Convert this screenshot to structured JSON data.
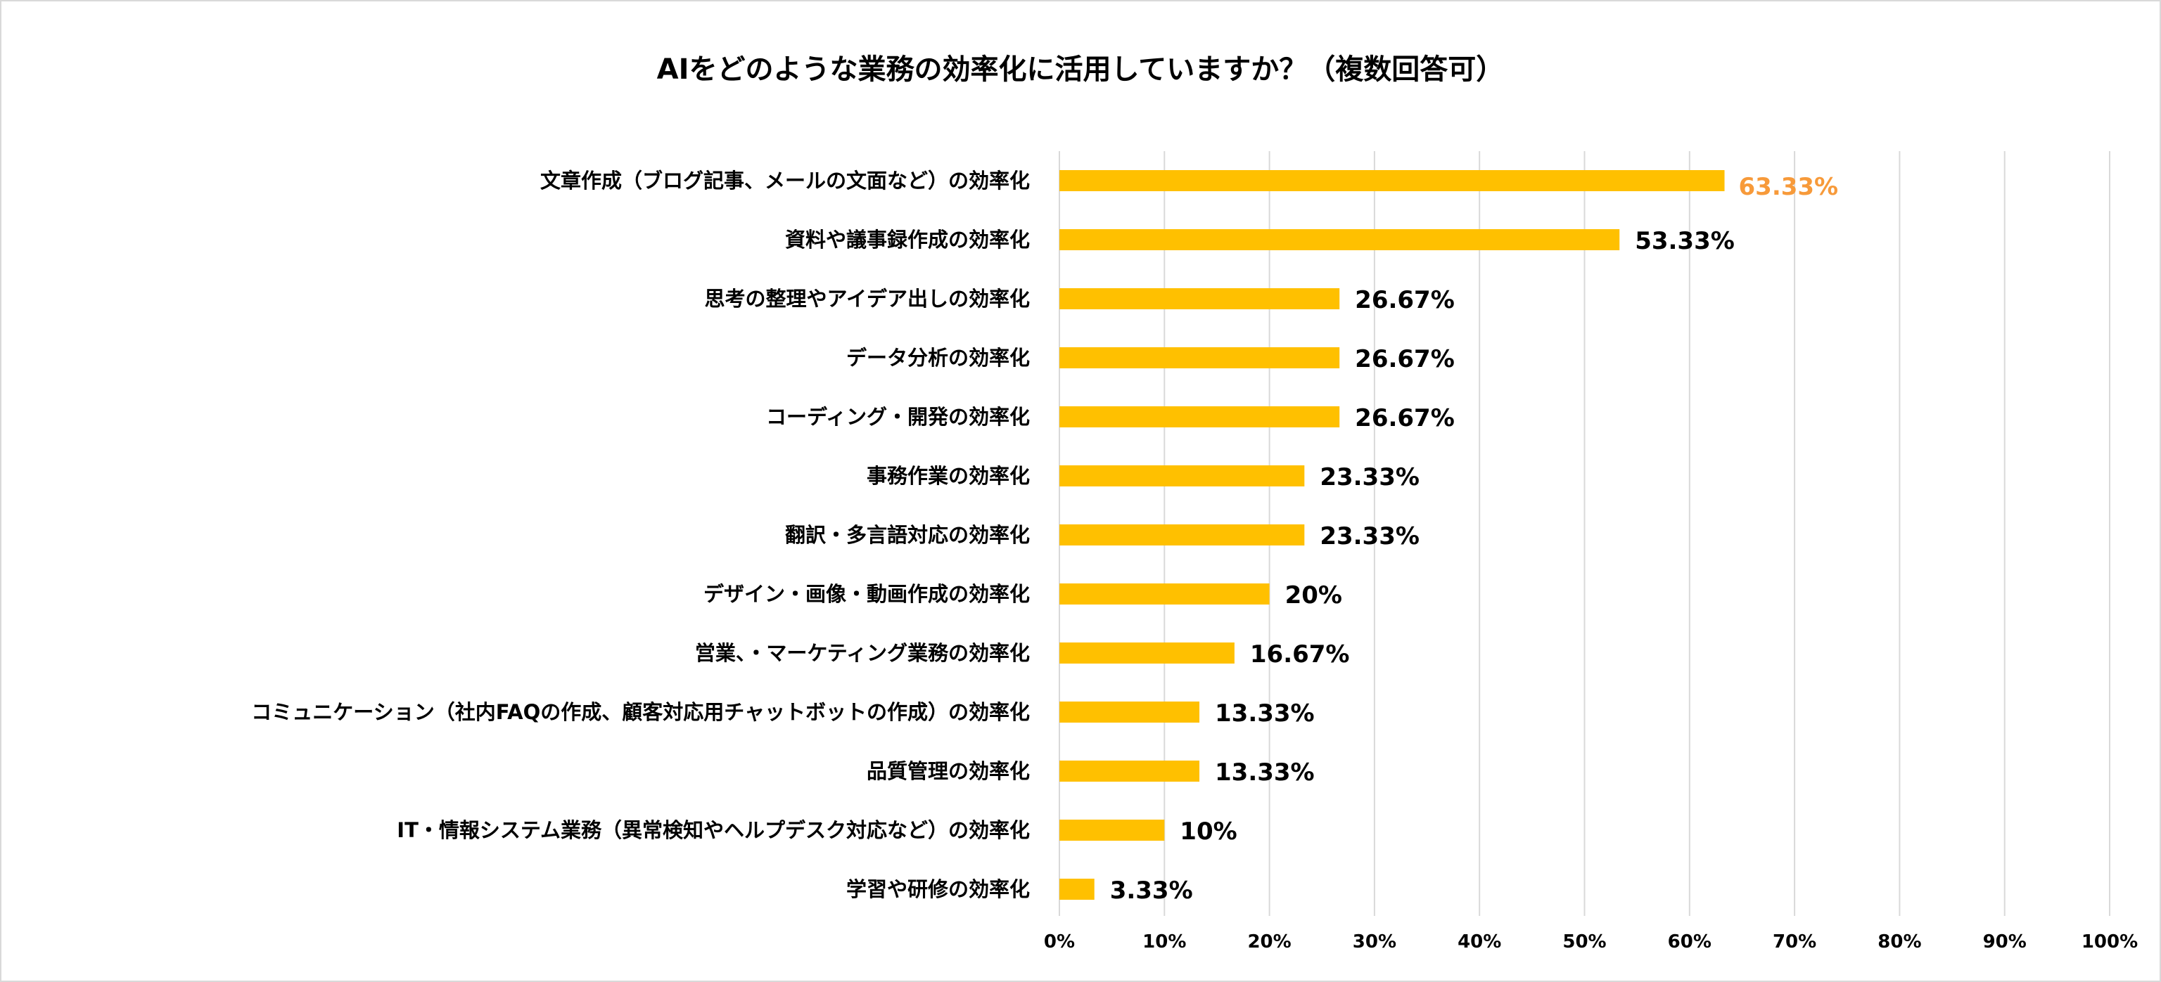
{
  "chart_data": {
    "type": "bar",
    "orientation": "horizontal",
    "title": "AIをどのような業務の効率化に活用していますか？（複数回答可）",
    "categories": [
      "文章作成（ブログ記事、メールの文面など）の効率化",
      "資料や議事録作成の効率化",
      "思考の整理やアイデア出しの効率化",
      "データ分析の効率化",
      "コーディング・開発の効率化",
      "事務作業の効率化",
      "翻訳・多言語対応の効率化",
      "デザイン・画像・動画作成の効率化",
      "営業、・マーケティング業務の効率化",
      "コミュニケーション（社内FAQの作成、顧客対応用チャットボットの作成）の効率化",
      "品質管理の効率化",
      "IT・情報システム業務（異常検知やヘルプデスク対応など）の効率化",
      "学習や研修の効率化"
    ],
    "values": [
      63.33,
      53.33,
      26.67,
      26.67,
      26.67,
      23.33,
      23.33,
      20,
      16.67,
      13.33,
      13.33,
      10,
      3.33
    ],
    "data_labels": [
      "63.33%",
      "53.33%",
      "26.67%",
      "26.67%",
      "26.67%",
      "23.33%",
      "23.33%",
      "20%",
      "16.67%",
      "13.33%",
      "13.33%",
      "10%",
      "3.33%"
    ],
    "xlim": [
      0,
      100
    ],
    "x_ticks": [
      "0%",
      "10%",
      "20%",
      "30%",
      "40%",
      "50%",
      "60%",
      "70%",
      "80%",
      "90%",
      "100%"
    ],
    "grid": "vertical",
    "legend": "none",
    "colors": {
      "bar": "#FFC000",
      "highlight_label": "#F79A3A",
      "grid": "#D9D9D9"
    }
  }
}
